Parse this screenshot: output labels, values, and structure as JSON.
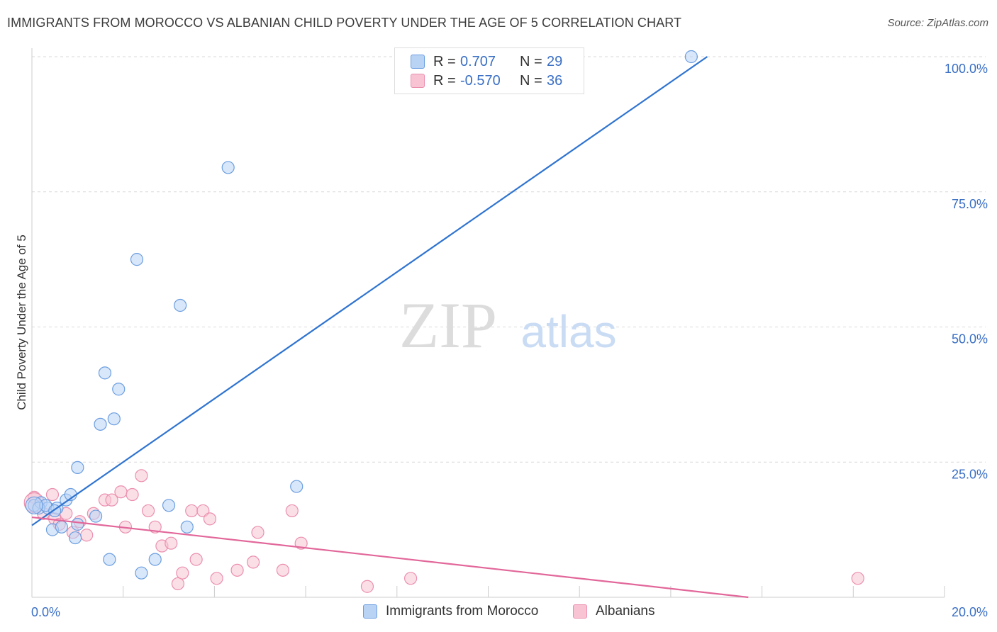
{
  "header": {
    "title": "IMMIGRANTS FROM MOROCCO VS ALBANIAN CHILD POVERTY UNDER THE AGE OF 5 CORRELATION CHART",
    "source": "Source: ZipAtlas.com"
  },
  "watermark": {
    "zip": "ZIP",
    "atlas": "atlas"
  },
  "legend": {
    "rows": [
      {
        "r_label": "R =",
        "r_value": "0.707",
        "n_label": "N =",
        "n_value": "29"
      },
      {
        "r_label": "R =",
        "r_value": "-0.570",
        "n_label": "N =",
        "n_value": "36"
      }
    ]
  },
  "bottom_legend": {
    "items": [
      "Immigrants from Morocco",
      "Albanians"
    ]
  },
  "colors": {
    "blue_fill": "#b9d3f5",
    "blue_stroke": "#6b9ee0",
    "blue_line": "#2f74d0",
    "pink_fill": "#f8c4d4",
    "pink_stroke": "#eb8fae",
    "pink_line": "#e2679a",
    "tick_text": "#3a6fc4",
    "grid": "#d9d9d9"
  },
  "chart_data": {
    "type": "scatter",
    "title": "IMMIGRANTS FROM MOROCCO VS ALBANIAN CHILD POVERTY UNDER THE AGE OF 5 CORRELATION CHART",
    "ylabel": "Child Poverty Under the Age of 5",
    "xlabel": "",
    "xlim": [
      0,
      20
    ],
    "ylim": [
      0,
      100
    ],
    "x_ticks": [
      "0.0%",
      "20.0%"
    ],
    "y_ticks": [
      "25.0%",
      "50.0%",
      "75.0%",
      "100.0%"
    ],
    "y_tick_values": [
      25,
      50,
      75,
      100
    ],
    "grid": true,
    "legend_position": "top-center",
    "series": [
      {
        "name": "Immigrants from Morocco",
        "r": 0.707,
        "n": 29,
        "points": [
          [
            0.05,
            17.0
          ],
          [
            0.2,
            17.5
          ],
          [
            0.35,
            16.5
          ],
          [
            0.45,
            12.5
          ],
          [
            0.55,
            16.5
          ],
          [
            0.65,
            13.0
          ],
          [
            0.75,
            18.0
          ],
          [
            0.85,
            19.0
          ],
          [
            0.95,
            11.0
          ],
          [
            1.0,
            24.0
          ],
          [
            1.5,
            32.0
          ],
          [
            1.6,
            41.5
          ],
          [
            1.9,
            38.5
          ],
          [
            1.8,
            33.0
          ],
          [
            1.7,
            7.0
          ],
          [
            1.4,
            15.0
          ],
          [
            2.3,
            62.5
          ],
          [
            2.4,
            4.5
          ],
          [
            2.7,
            7.0
          ],
          [
            3.0,
            17.0
          ],
          [
            3.25,
            54.0
          ],
          [
            3.4,
            13.0
          ],
          [
            4.3,
            79.5
          ],
          [
            5.8,
            20.5
          ],
          [
            14.45,
            100.0
          ],
          [
            0.15,
            16.5
          ],
          [
            0.3,
            17.0
          ],
          [
            0.5,
            16.0
          ],
          [
            1.0,
            13.5
          ]
        ],
        "trend": {
          "x": [
            0.0,
            14.8
          ],
          "y": [
            13.3,
            100.0
          ]
        }
      },
      {
        "name": "Albanians",
        "r": -0.57,
        "n": 36,
        "points": [
          [
            0.05,
            18.5
          ],
          [
            0.25,
            15.5
          ],
          [
            0.45,
            19.0
          ],
          [
            0.5,
            14.5
          ],
          [
            0.75,
            15.5
          ],
          [
            0.9,
            12.0
          ],
          [
            1.05,
            14.0
          ],
          [
            1.2,
            11.5
          ],
          [
            1.35,
            15.5
          ],
          [
            1.6,
            18.0
          ],
          [
            1.75,
            18.0
          ],
          [
            1.95,
            19.5
          ],
          [
            2.05,
            13.0
          ],
          [
            2.2,
            19.0
          ],
          [
            2.4,
            22.5
          ],
          [
            2.55,
            16.0
          ],
          [
            2.7,
            13.0
          ],
          [
            2.85,
            9.5
          ],
          [
            3.05,
            10.0
          ],
          [
            3.2,
            2.5
          ],
          [
            3.3,
            4.5
          ],
          [
            3.5,
            16.0
          ],
          [
            3.6,
            7.0
          ],
          [
            3.75,
            16.0
          ],
          [
            3.9,
            14.5
          ],
          [
            4.05,
            3.5
          ],
          [
            4.5,
            5.0
          ],
          [
            4.85,
            6.5
          ],
          [
            4.95,
            12.0
          ],
          [
            5.5,
            5.0
          ],
          [
            5.7,
            16.0
          ],
          [
            5.9,
            10.0
          ],
          [
            7.35,
            2.0
          ],
          [
            8.3,
            3.5
          ],
          [
            18.1,
            3.5
          ],
          [
            0.6,
            13.5
          ]
        ],
        "trend": {
          "x": [
            0.0,
            15.7
          ],
          "y": [
            14.8,
            0.0
          ]
        }
      }
    ]
  }
}
